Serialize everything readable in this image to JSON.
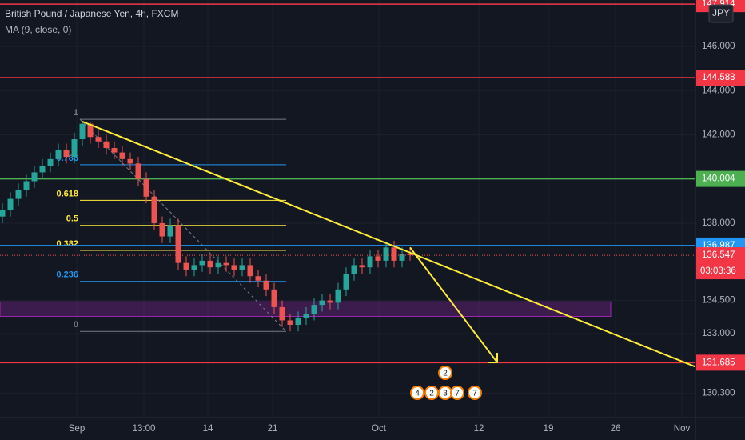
{
  "chart_data": {
    "type": "candlestick",
    "title": "British Pound / Japanese Yen, 4h, FXCM",
    "indicator": "MA (9, close, 0)",
    "currency": "JPY",
    "ylim": [
      129.2,
      148.1
    ],
    "yticks": [
      {
        "value": 146,
        "label": "146.000"
      },
      {
        "value": 144,
        "label": "144.000"
      },
      {
        "value": 142,
        "label": "142.000"
      },
      {
        "value": 138,
        "label": "138.000"
      },
      {
        "value": 134.5,
        "label": "134.500"
      },
      {
        "value": 133,
        "label": "133.000"
      },
      {
        "value": 130.3,
        "label": "130.300"
      }
    ],
    "xlabels": [
      "Sep",
      "13:00",
      "14",
      "21",
      "Oct",
      "12",
      "19",
      "26",
      "Nov"
    ],
    "up_color": "#26a69a",
    "down_color": "#ef5350",
    "candles": [
      [
        138.3,
        138.9,
        138.0,
        138.6
      ],
      [
        138.6,
        139.4,
        138.3,
        139.1
      ],
      [
        139.1,
        139.8,
        138.8,
        139.5
      ],
      [
        139.5,
        140.2,
        139.2,
        139.9
      ],
      [
        139.9,
        140.6,
        139.6,
        140.3
      ],
      [
        140.3,
        140.9,
        140.0,
        140.6
      ],
      [
        140.6,
        141.2,
        140.3,
        140.9
      ],
      [
        140.9,
        141.6,
        140.6,
        141.3
      ],
      [
        141.3,
        141.6,
        140.7,
        141.0
      ],
      [
        141.0,
        142.1,
        140.7,
        141.8
      ],
      [
        141.8,
        142.6,
        141.5,
        142.5
      ],
      [
        142.5,
        142.6,
        141.6,
        141.9
      ],
      [
        141.9,
        142.2,
        141.4,
        141.7
      ],
      [
        141.7,
        142.0,
        141.1,
        141.4
      ],
      [
        141.4,
        141.7,
        140.9,
        141.2
      ],
      [
        141.2,
        141.5,
        140.6,
        140.9
      ],
      [
        140.9,
        141.2,
        140.4,
        140.7
      ],
      [
        140.7,
        141.0,
        139.7,
        140.0
      ],
      [
        140.0,
        140.3,
        138.9,
        139.2
      ],
      [
        139.2,
        139.5,
        137.7,
        138.0
      ],
      [
        138.0,
        138.3,
        137.1,
        137.4
      ],
      [
        137.4,
        138.2,
        137.1,
        137.9
      ],
      [
        137.9,
        138.2,
        135.9,
        136.2
      ],
      [
        136.2,
        136.5,
        135.6,
        135.9
      ],
      [
        135.9,
        136.4,
        135.6,
        136.1
      ],
      [
        136.1,
        136.6,
        135.8,
        136.3
      ],
      [
        136.3,
        136.6,
        135.7,
        136.0
      ],
      [
        136.0,
        136.5,
        135.7,
        136.2
      ],
      [
        136.2,
        136.5,
        135.8,
        136.1
      ],
      [
        136.1,
        136.4,
        135.6,
        135.9
      ],
      [
        135.9,
        136.4,
        135.6,
        136.1
      ],
      [
        136.1,
        136.4,
        135.3,
        135.6
      ],
      [
        135.6,
        135.9,
        135.1,
        135.4
      ],
      [
        135.4,
        135.7,
        134.7,
        135.0
      ],
      [
        135.0,
        135.3,
        133.9,
        134.2
      ],
      [
        134.2,
        134.5,
        133.3,
        133.6
      ],
      [
        133.6,
        133.9,
        133.1,
        133.4
      ],
      [
        133.4,
        134.0,
        133.1,
        133.7
      ],
      [
        133.7,
        134.2,
        133.4,
        133.9
      ],
      [
        133.9,
        134.6,
        133.6,
        134.3
      ],
      [
        134.3,
        134.8,
        134.0,
        134.5
      ],
      [
        134.5,
        134.8,
        134.1,
        134.4
      ],
      [
        134.4,
        135.3,
        134.1,
        135.0
      ],
      [
        135.0,
        136.0,
        134.7,
        135.7
      ],
      [
        135.7,
        136.4,
        135.4,
        136.1
      ],
      [
        136.1,
        136.4,
        135.7,
        136.0
      ],
      [
        136.0,
        136.8,
        135.7,
        136.5
      ],
      [
        136.5,
        136.8,
        136.0,
        136.3
      ],
      [
        136.3,
        137.1,
        136.0,
        136.9
      ],
      [
        136.9,
        137.2,
        136.0,
        136.3
      ],
      [
        136.3,
        136.9,
        136.0,
        136.6
      ],
      [
        136.6,
        136.9,
        136.3,
        136.55
      ]
    ],
    "levels": [
      {
        "value": 147.914,
        "color": "#f23645"
      },
      {
        "value": 144.588,
        "color": "#f23645"
      },
      {
        "value": 140.004,
        "color": "#4caf50"
      },
      {
        "value": 136.987,
        "color": "#2196f3"
      },
      {
        "value": 131.685,
        "color": "#f23645"
      }
    ],
    "last_price": 136.547,
    "countdown": "03:03:36",
    "fib": {
      "high": 142.7,
      "low": 133.1,
      "levels": [
        1,
        0.786,
        0.618,
        0.5,
        0.382,
        0.236,
        0
      ],
      "labels": [
        "1",
        "0.786",
        "0.618",
        "0.5",
        "0.382",
        "0.236",
        "0"
      ],
      "colors": [
        "#787b86",
        "#2196f3",
        "#ffeb3b",
        "#ffeb3b",
        "#ffeb3b",
        "#2196f3",
        "#787b86"
      ]
    },
    "trendline": [
      142.6,
      131.5
    ],
    "arrow": [
      136.9,
      131.7
    ],
    "zone": [
      134.44,
      133.78
    ],
    "events": [
      "2",
      "4",
      "2",
      "3",
      "7",
      "7"
    ]
  }
}
